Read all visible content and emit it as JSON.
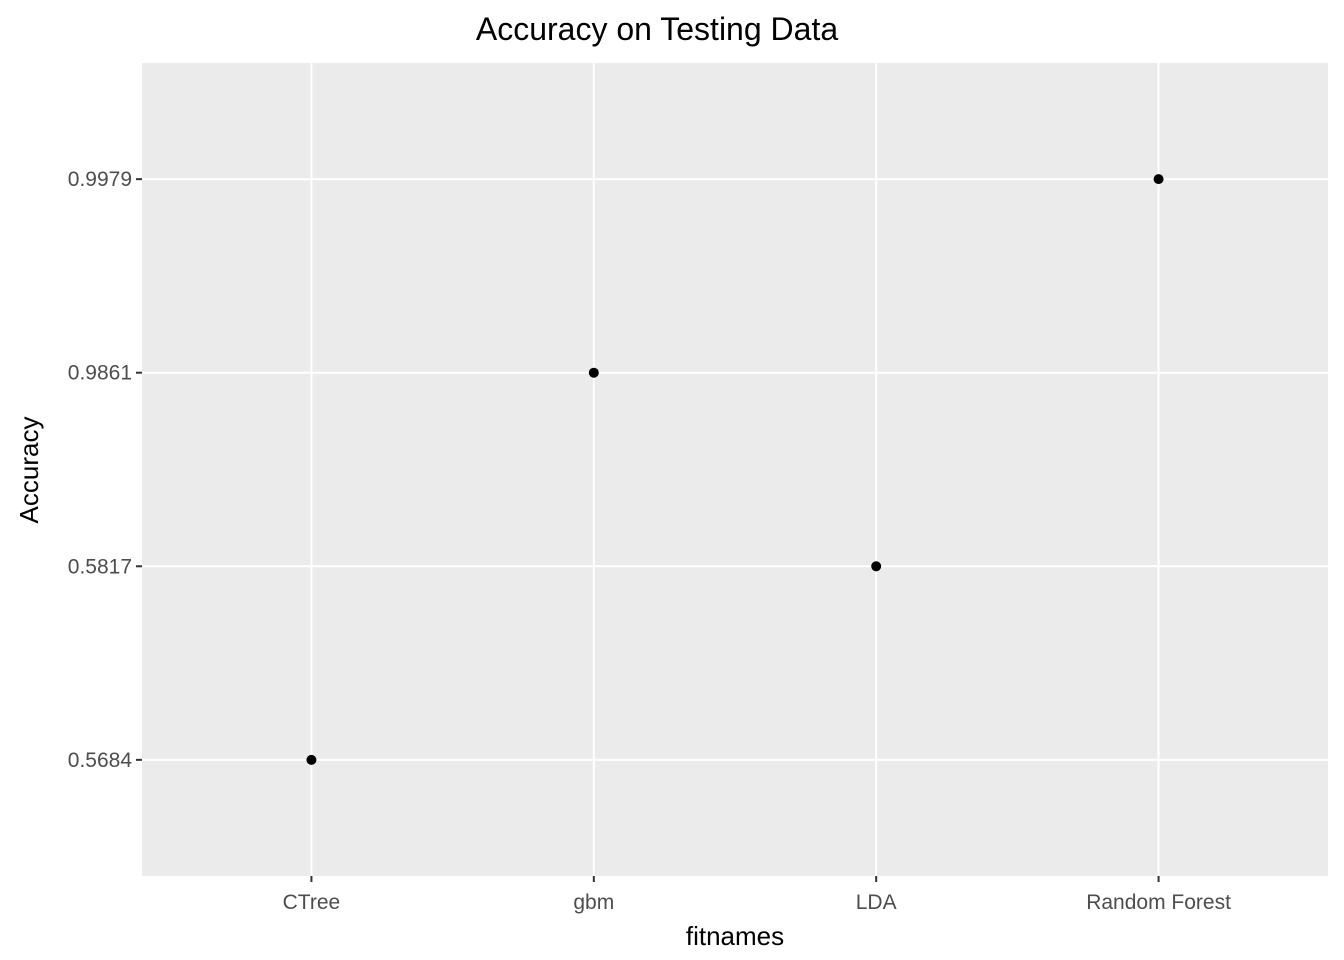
{
  "chart_data": {
    "type": "scatter",
    "title": "Accuracy on Testing Data",
    "xlabel": "fitnames",
    "ylabel": "Accuracy",
    "categories": [
      "CTree",
      "gbm",
      "LDA",
      "Random Forest"
    ],
    "y_levels": [
      "0.5684",
      "0.5817",
      "0.9861",
      "0.9979"
    ],
    "points": [
      {
        "x": "CTree",
        "y": "0.5684"
      },
      {
        "x": "gbm",
        "y": "0.9861"
      },
      {
        "x": "LDA",
        "y": "0.5817"
      },
      {
        "x": "Random Forest",
        "y": "0.9979"
      }
    ],
    "grid": true,
    "legend": "none",
    "colors": {
      "panel_background": "#ebebeb",
      "grid": "#ffffff",
      "point": "#000000",
      "tick": "#333333"
    }
  }
}
